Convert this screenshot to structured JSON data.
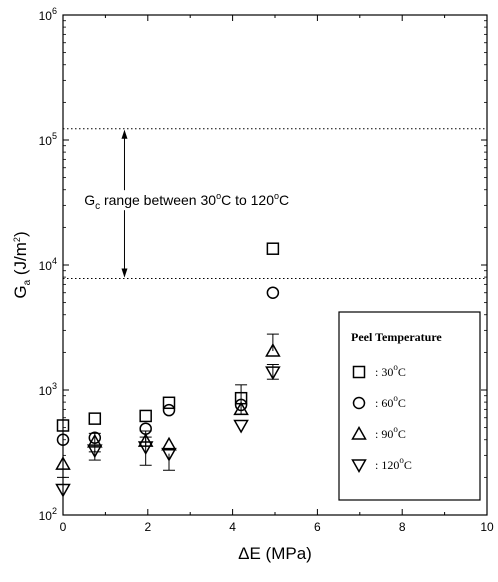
{
  "chart_data": {
    "type": "scatter",
    "title": "",
    "xlabel": "ΔE (MPa)",
    "ylabel": {
      "main": "G",
      "sub": "a",
      "units": "(J/m",
      "unit_sup": "2",
      "close": ")"
    },
    "xscale": "linear",
    "yscale": "log",
    "xlim": [
      0,
      10
    ],
    "ylim": [
      100,
      1000000
    ],
    "x_ticks": [
      0,
      2,
      4,
      6,
      8,
      10
    ],
    "x_tick_labels": [
      "0",
      "2",
      "4",
      "6",
      "8",
      "10"
    ],
    "y_ticks": [
      {
        "value": 100,
        "base": "10",
        "exp": "2"
      },
      {
        "value": 1000,
        "base": "10",
        "exp": "3"
      },
      {
        "value": 10000,
        "base": "10",
        "exp": "4"
      },
      {
        "value": 100000,
        "base": "10",
        "exp": "5"
      },
      {
        "value": 1000000,
        "base": "10",
        "exp": "6"
      }
    ],
    "reference_lines": [
      {
        "orientation": "horizontal",
        "y": 123000,
        "style": "dotted"
      },
      {
        "orientation": "horizontal",
        "y": 7800,
        "style": "dotted"
      }
    ],
    "annotation": {
      "text_parts": [
        "G",
        "c",
        " range between 30",
        "o",
        "C to 120",
        "o",
        "C"
      ],
      "arrow_x": 1.45,
      "arrow_from": 123000,
      "arrow_to": 7800,
      "text_x": 0.5,
      "text_y": 33000
    },
    "legend": {
      "title": "Peel Temperature",
      "location": "lower-right",
      "entries": [
        {
          "marker": "square",
          "prefix": ": 30",
          "sup": "o",
          "suffix": "C"
        },
        {
          "marker": "circle",
          "prefix": ": 60",
          "sup": "o",
          "suffix": "C"
        },
        {
          "marker": "triangle-up",
          "prefix": ": 90",
          "sup": "o",
          "suffix": "C"
        },
        {
          "marker": "triangle-down",
          "prefix": ": 120",
          "sup": "o",
          "suffix": "C"
        }
      ]
    },
    "series": [
      {
        "marker": "square",
        "points": [
          {
            "x": 0,
            "y": 520
          },
          {
            "x": 0.75,
            "y": 590
          },
          {
            "x": 1.95,
            "y": 620
          },
          {
            "x": 2.5,
            "y": 790
          },
          {
            "x": 4.2,
            "y": 860
          },
          {
            "x": 4.95,
            "y": 13500
          }
        ]
      },
      {
        "marker": "circle",
        "points": [
          {
            "x": 0,
            "y": 400
          },
          {
            "x": 0.75,
            "y": 415
          },
          {
            "x": 1.95,
            "y": 490
          },
          {
            "x": 2.5,
            "y": 690
          },
          {
            "x": 4.2,
            "y": 760
          },
          {
            "x": 4.95,
            "y": 6000
          }
        ]
      },
      {
        "marker": "triangle-up",
        "points": [
          {
            "x": 0,
            "y": 255
          },
          {
            "x": 0.75,
            "y": 385,
            "err_low": 320,
            "err_high": 450
          },
          {
            "x": 1.95,
            "y": 390,
            "err_low": 250,
            "err_high": 470
          },
          {
            "x": 2.5,
            "y": 365
          },
          {
            "x": 4.2,
            "y": 700,
            "err_low": 640,
            "err_high": 1100
          },
          {
            "x": 4.95,
            "y": 2050,
            "err_high": 2800
          }
        ]
      },
      {
        "marker": "triangle-down",
        "points": [
          {
            "x": 0,
            "y": 160,
            "err_high": 200
          },
          {
            "x": 0.75,
            "y": 330,
            "err_low": 275
          },
          {
            "x": 1.95,
            "y": 350,
            "err_high": 420
          },
          {
            "x": 2.5,
            "y": 310,
            "err_low": 228
          },
          {
            "x": 4.2,
            "y": 520
          },
          {
            "x": 4.95,
            "y": 1390,
            "err_low": 1220,
            "err_high": 1600
          }
        ]
      }
    ]
  }
}
